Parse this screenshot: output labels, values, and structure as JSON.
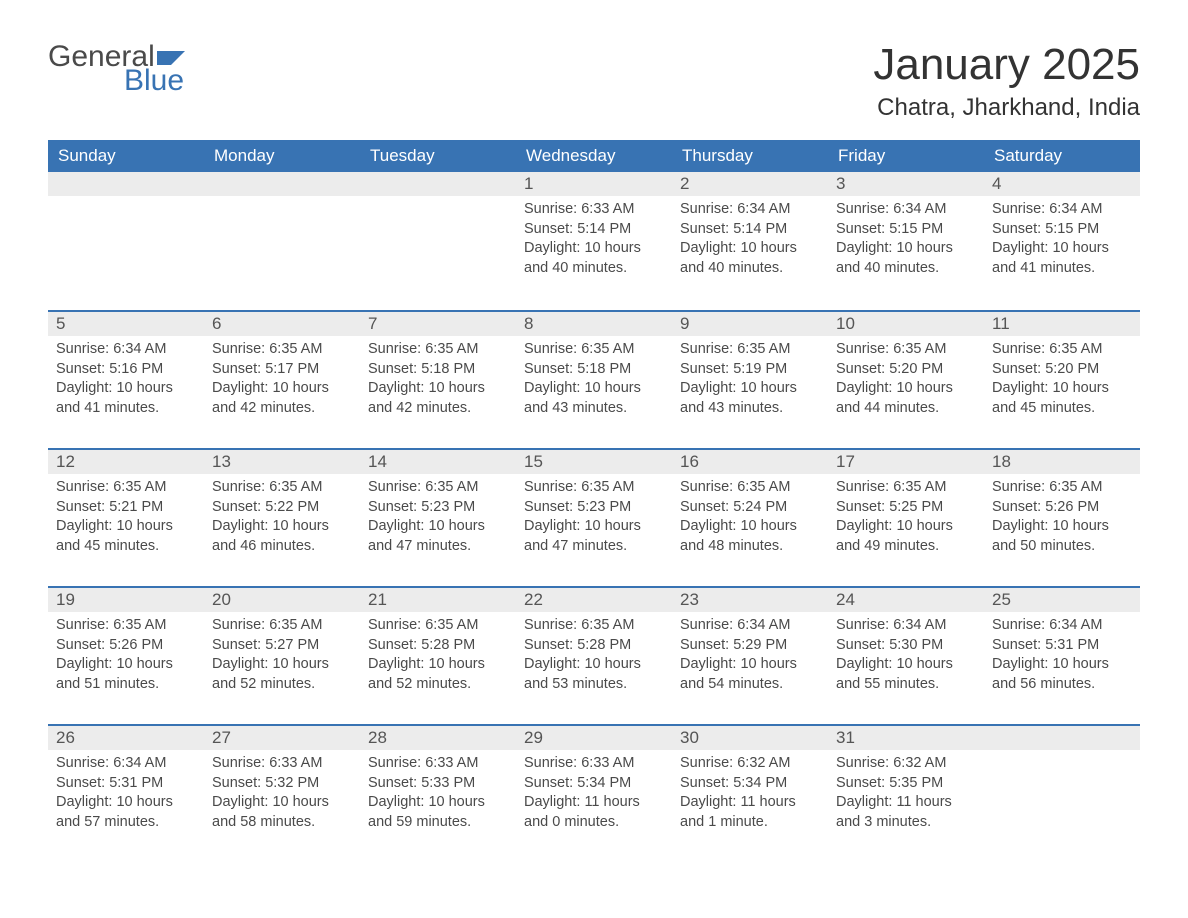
{
  "logo": {
    "text_general": "General",
    "text_blue": "Blue",
    "flag_color": "#3873b3"
  },
  "title": {
    "month": "January 2025",
    "location": "Chatra, Jharkhand, India"
  },
  "colors": {
    "header_bg": "#3873b3",
    "header_text": "#ffffff",
    "daynum_bg": "#ececec",
    "row_divider": "#3873b3",
    "text": "#4a4a4a",
    "title_text": "#333333",
    "background": "#ffffff"
  },
  "typography": {
    "month_title_fontsize": 44,
    "location_fontsize": 24,
    "weekday_fontsize": 17,
    "daynum_fontsize": 17,
    "body_fontsize": 14.5,
    "logo_fontsize": 30
  },
  "weekdays": [
    "Sunday",
    "Monday",
    "Tuesday",
    "Wednesday",
    "Thursday",
    "Friday",
    "Saturday"
  ],
  "weeks": [
    [
      null,
      null,
      null,
      {
        "n": "1",
        "sunrise": "6:33 AM",
        "sunset": "5:14 PM",
        "daylight": "10 hours and 40 minutes."
      },
      {
        "n": "2",
        "sunrise": "6:34 AM",
        "sunset": "5:14 PM",
        "daylight": "10 hours and 40 minutes."
      },
      {
        "n": "3",
        "sunrise": "6:34 AM",
        "sunset": "5:15 PM",
        "daylight": "10 hours and 40 minutes."
      },
      {
        "n": "4",
        "sunrise": "6:34 AM",
        "sunset": "5:15 PM",
        "daylight": "10 hours and 41 minutes."
      }
    ],
    [
      {
        "n": "5",
        "sunrise": "6:34 AM",
        "sunset": "5:16 PM",
        "daylight": "10 hours and 41 minutes."
      },
      {
        "n": "6",
        "sunrise": "6:35 AM",
        "sunset": "5:17 PM",
        "daylight": "10 hours and 42 minutes."
      },
      {
        "n": "7",
        "sunrise": "6:35 AM",
        "sunset": "5:18 PM",
        "daylight": "10 hours and 42 minutes."
      },
      {
        "n": "8",
        "sunrise": "6:35 AM",
        "sunset": "5:18 PM",
        "daylight": "10 hours and 43 minutes."
      },
      {
        "n": "9",
        "sunrise": "6:35 AM",
        "sunset": "5:19 PM",
        "daylight": "10 hours and 43 minutes."
      },
      {
        "n": "10",
        "sunrise": "6:35 AM",
        "sunset": "5:20 PM",
        "daylight": "10 hours and 44 minutes."
      },
      {
        "n": "11",
        "sunrise": "6:35 AM",
        "sunset": "5:20 PM",
        "daylight": "10 hours and 45 minutes."
      }
    ],
    [
      {
        "n": "12",
        "sunrise": "6:35 AM",
        "sunset": "5:21 PM",
        "daylight": "10 hours and 45 minutes."
      },
      {
        "n": "13",
        "sunrise": "6:35 AM",
        "sunset": "5:22 PM",
        "daylight": "10 hours and 46 minutes."
      },
      {
        "n": "14",
        "sunrise": "6:35 AM",
        "sunset": "5:23 PM",
        "daylight": "10 hours and 47 minutes."
      },
      {
        "n": "15",
        "sunrise": "6:35 AM",
        "sunset": "5:23 PM",
        "daylight": "10 hours and 47 minutes."
      },
      {
        "n": "16",
        "sunrise": "6:35 AM",
        "sunset": "5:24 PM",
        "daylight": "10 hours and 48 minutes."
      },
      {
        "n": "17",
        "sunrise": "6:35 AM",
        "sunset": "5:25 PM",
        "daylight": "10 hours and 49 minutes."
      },
      {
        "n": "18",
        "sunrise": "6:35 AM",
        "sunset": "5:26 PM",
        "daylight": "10 hours and 50 minutes."
      }
    ],
    [
      {
        "n": "19",
        "sunrise": "6:35 AM",
        "sunset": "5:26 PM",
        "daylight": "10 hours and 51 minutes."
      },
      {
        "n": "20",
        "sunrise": "6:35 AM",
        "sunset": "5:27 PM",
        "daylight": "10 hours and 52 minutes."
      },
      {
        "n": "21",
        "sunrise": "6:35 AM",
        "sunset": "5:28 PM",
        "daylight": "10 hours and 52 minutes."
      },
      {
        "n": "22",
        "sunrise": "6:35 AM",
        "sunset": "5:28 PM",
        "daylight": "10 hours and 53 minutes."
      },
      {
        "n": "23",
        "sunrise": "6:34 AM",
        "sunset": "5:29 PM",
        "daylight": "10 hours and 54 minutes."
      },
      {
        "n": "24",
        "sunrise": "6:34 AM",
        "sunset": "5:30 PM",
        "daylight": "10 hours and 55 minutes."
      },
      {
        "n": "25",
        "sunrise": "6:34 AM",
        "sunset": "5:31 PM",
        "daylight": "10 hours and 56 minutes."
      }
    ],
    [
      {
        "n": "26",
        "sunrise": "6:34 AM",
        "sunset": "5:31 PM",
        "daylight": "10 hours and 57 minutes."
      },
      {
        "n": "27",
        "sunrise": "6:33 AM",
        "sunset": "5:32 PM",
        "daylight": "10 hours and 58 minutes."
      },
      {
        "n": "28",
        "sunrise": "6:33 AM",
        "sunset": "5:33 PM",
        "daylight": "10 hours and 59 minutes."
      },
      {
        "n": "29",
        "sunrise": "6:33 AM",
        "sunset": "5:34 PM",
        "daylight": "11 hours and 0 minutes."
      },
      {
        "n": "30",
        "sunrise": "6:32 AM",
        "sunset": "5:34 PM",
        "daylight": "11 hours and 1 minute."
      },
      {
        "n": "31",
        "sunrise": "6:32 AM",
        "sunset": "5:35 PM",
        "daylight": "11 hours and 3 minutes."
      },
      null
    ]
  ],
  "labels": {
    "sunrise": "Sunrise:",
    "sunset": "Sunset:",
    "daylight": "Daylight:"
  }
}
